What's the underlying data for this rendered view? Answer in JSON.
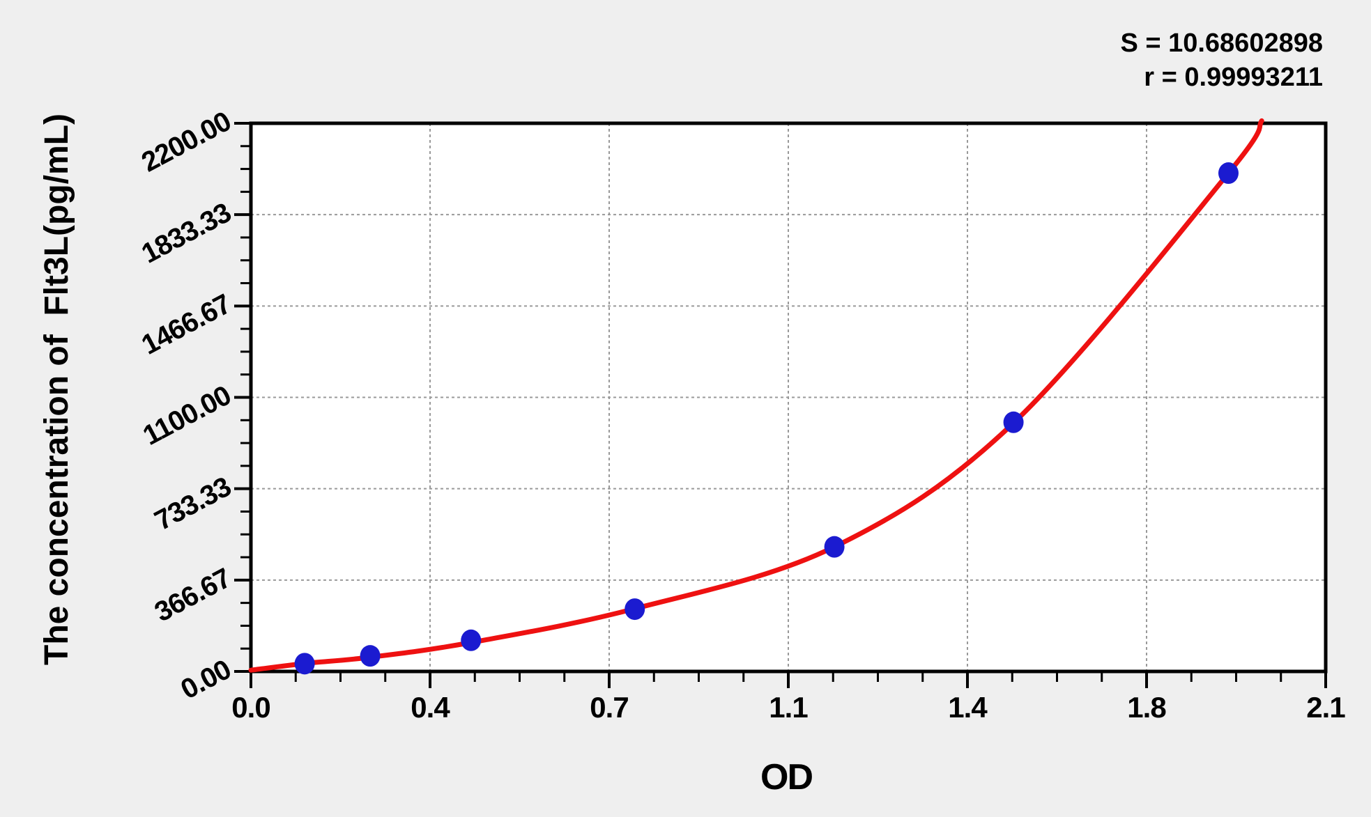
{
  "colors": {
    "background": "#efefef",
    "plot_background": "#ffffff",
    "axis": "#000000",
    "grid": "#999999",
    "curve": "#ee1111",
    "marker": "#1b1bd0",
    "text": "#000000"
  },
  "chart_data": {
    "type": "scatter",
    "title": "",
    "xlabel": "OD",
    "ylabel": "The concentration of  Flt3L(pg/mL)",
    "xlim": [
      0,
      2.1
    ],
    "ylim": [
      0,
      2200
    ],
    "grid": "dashed on major ticks",
    "legend": "none",
    "x_ticks": {
      "values": [
        0,
        0.35,
        0.7,
        1.05,
        1.4,
        1.75,
        2.1
      ],
      "labels": [
        "0.0",
        "0.4",
        "0.7",
        "1.1",
        "1.4",
        "1.8",
        "2.1"
      ],
      "minor_per_major": 4
    },
    "y_ticks": {
      "values": [
        0,
        366.67,
        733.33,
        1100,
        1466.67,
        1833.33,
        2200
      ],
      "labels": [
        "0.00",
        "366.67",
        "733.33",
        "1100.00",
        "1466.67",
        "1833.33",
        "2200.00"
      ],
      "minor_per_major": 4
    },
    "series": [
      {
        "name": "standard-points",
        "type": "scatter",
        "marker": "circle",
        "od": [
          0.105,
          0.233,
          0.43,
          0.75,
          1.14,
          1.49,
          1.91
        ],
        "conc": [
          31.25,
          62.5,
          125,
          250,
          500,
          1000,
          2000
        ]
      },
      {
        "name": "fitted-curve",
        "type": "line",
        "od": [
          0,
          0.105,
          0.233,
          0.43,
          0.75,
          1.14,
          1.49,
          1.91,
          1.975
        ],
        "conc": [
          5,
          32,
          57,
          116,
          252,
          500,
          997,
          2000,
          2210
        ]
      }
    ],
    "annotations": {
      "s": "S = 10.68602898",
      "r": "r = 0.99993211"
    }
  }
}
